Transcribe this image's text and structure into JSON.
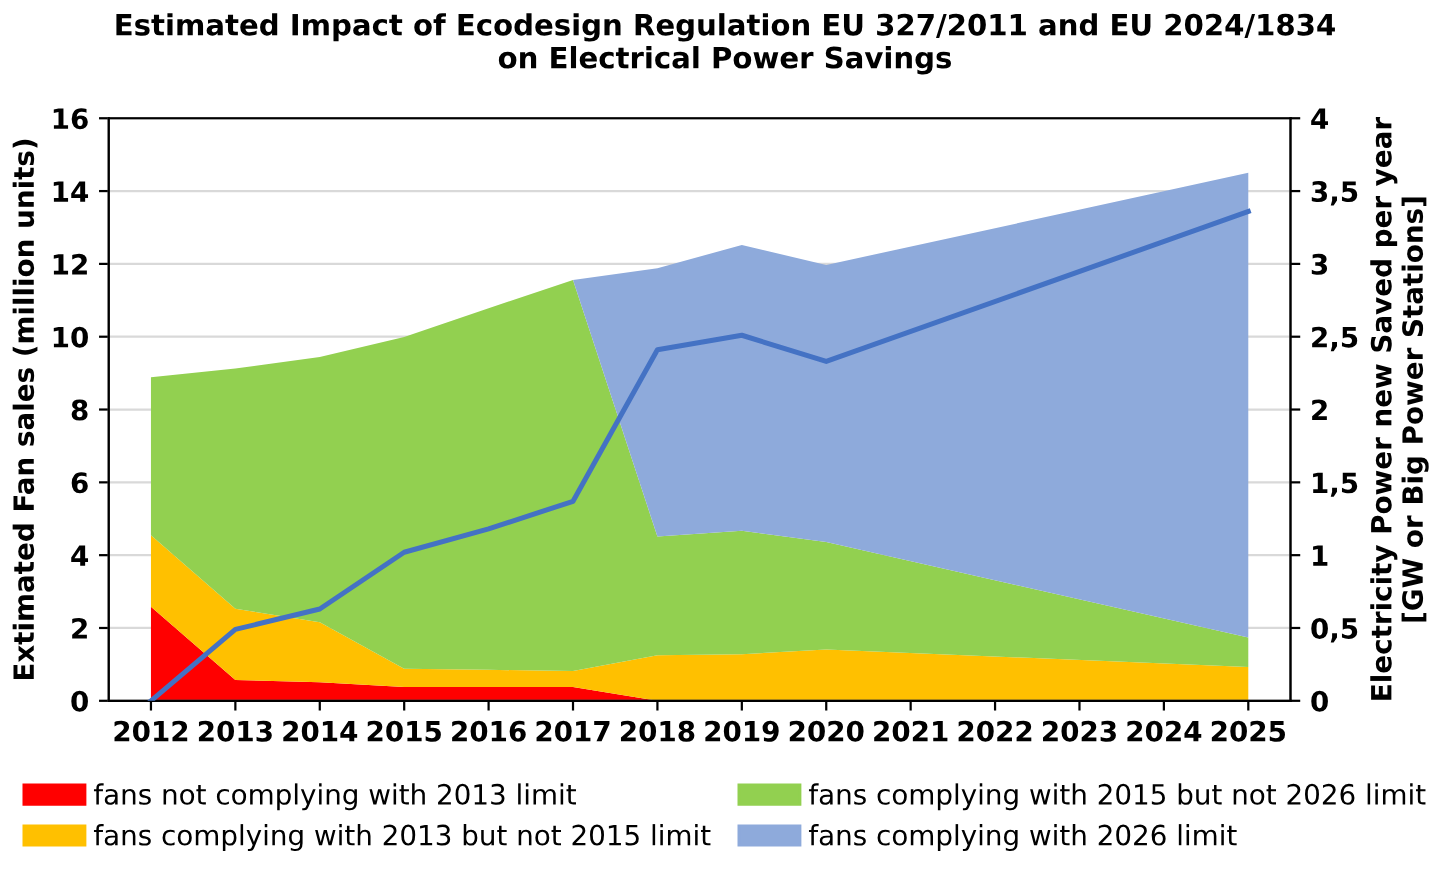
{
  "chart_data": {
    "type": "area",
    "stacked": true,
    "title": "Estimated Impact of Ecodesign Regulation EU 327/2011 and EU 2024/1834\non Electrical Power Savings",
    "ylabel": "Extimated Fan sales (million units)",
    "y2label": "Electricity Power new Saved per year\n[GW or Big Power Stations]",
    "x": [
      2012,
      2013,
      2014,
      2015,
      2016,
      2017,
      2018,
      2019,
      2020,
      2025
    ],
    "xlim": [
      2011.5,
      2025.5
    ],
    "xticks": [
      2012,
      2013,
      2014,
      2015,
      2016,
      2017,
      2018,
      2019,
      2020,
      2021,
      2022,
      2023,
      2024,
      2025
    ],
    "ylim": [
      0,
      16
    ],
    "yticks": [
      0,
      2,
      4,
      6,
      8,
      10,
      12,
      14,
      16
    ],
    "y2lim": [
      0,
      4
    ],
    "y2ticks": [
      0,
      {
        "value": 0.5,
        "label": "0,5"
      },
      1,
      {
        "value": 1.5,
        "label": "1,5"
      },
      2,
      {
        "value": 2.5,
        "label": "2,5"
      },
      3,
      {
        "value": 3.5,
        "label": "3,5"
      },
      4
    ],
    "grid": "y",
    "legend": "bottom",
    "series": [
      {
        "name": "fans not complying with 2013 limit",
        "color": "#ff0000",
        "values": [
          2.58,
          0.57,
          0.51,
          0.38,
          0.38,
          0.38,
          0,
          0,
          0,
          0
        ]
      },
      {
        "name": "fans complying with 2013 but not 2015 limit",
        "color": "#ffc000",
        "values": [
          1.97,
          1.96,
          1.65,
          0.5,
          0.47,
          0.44,
          1.25,
          1.28,
          1.41,
          0.93
        ]
      },
      {
        "name": "fans complying with 2015 but not 2026 limit",
        "color": "#92d050",
        "values": [
          4.34,
          6.6,
          7.28,
          9.11,
          9.93,
          10.74,
          3.26,
          3.39,
          2.95,
          0.81
        ]
      },
      {
        "name": "fans complying with 2026 limit",
        "color": "#8eaadb",
        "values": [
          0,
          0,
          0,
          0,
          0,
          0,
          7.37,
          7.85,
          7.61,
          12.76
        ]
      },
      {
        "type": "line",
        "axis": "y2",
        "color": "#4472c4",
        "values": [
          0,
          0.49,
          0.63,
          1.02,
          1.18,
          1.37,
          2.41,
          2.51,
          2.33,
          3.36
        ]
      }
    ]
  }
}
